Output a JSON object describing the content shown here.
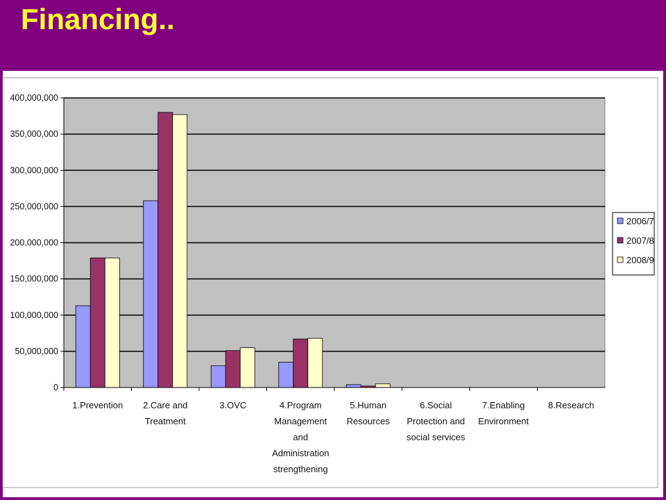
{
  "slide": {
    "title": "Financing.."
  },
  "colors": {
    "title_bar": "#800080",
    "title_text": "#ffff33",
    "plot_area": "#c0c0c0"
  },
  "chart_data": {
    "type": "bar",
    "title": "",
    "xlabel": "",
    "ylabel": "",
    "ylim": [
      0,
      400000000
    ],
    "y_ticks": [
      "0",
      "50,000,000",
      "100,000,000",
      "150,000,000",
      "200,000,000",
      "250,000,000",
      "300,000,000",
      "350,000,000",
      "400,000,000"
    ],
    "grid": true,
    "legend_position": "right",
    "categories": [
      [
        "1.Prevention"
      ],
      [
        "2.Care and",
        "Treatment"
      ],
      [
        "3.OVC"
      ],
      [
        "4.Program",
        "Management",
        "and",
        "Administration",
        "strengthening"
      ],
      [
        "5.Human",
        "Resources"
      ],
      [
        "6.Social",
        "Protection and",
        "social services"
      ],
      [
        "7.Enabling",
        "Environment"
      ],
      [
        "8.Research"
      ]
    ],
    "series": [
      {
        "name": "2006/7",
        "color": "#9999ff",
        "values": [
          113000000,
          258000000,
          30000000,
          35000000,
          4000000,
          0,
          0,
          0
        ]
      },
      {
        "name": "2007/8",
        "color": "#993366",
        "values": [
          179000000,
          380000000,
          51000000,
          67000000,
          2000000,
          0,
          0,
          0
        ]
      },
      {
        "name": "2008/9",
        "color": "#ffffcc",
        "values": [
          179000000,
          377000000,
          55000000,
          68000000,
          5000000,
          0,
          0,
          0
        ]
      }
    ]
  }
}
